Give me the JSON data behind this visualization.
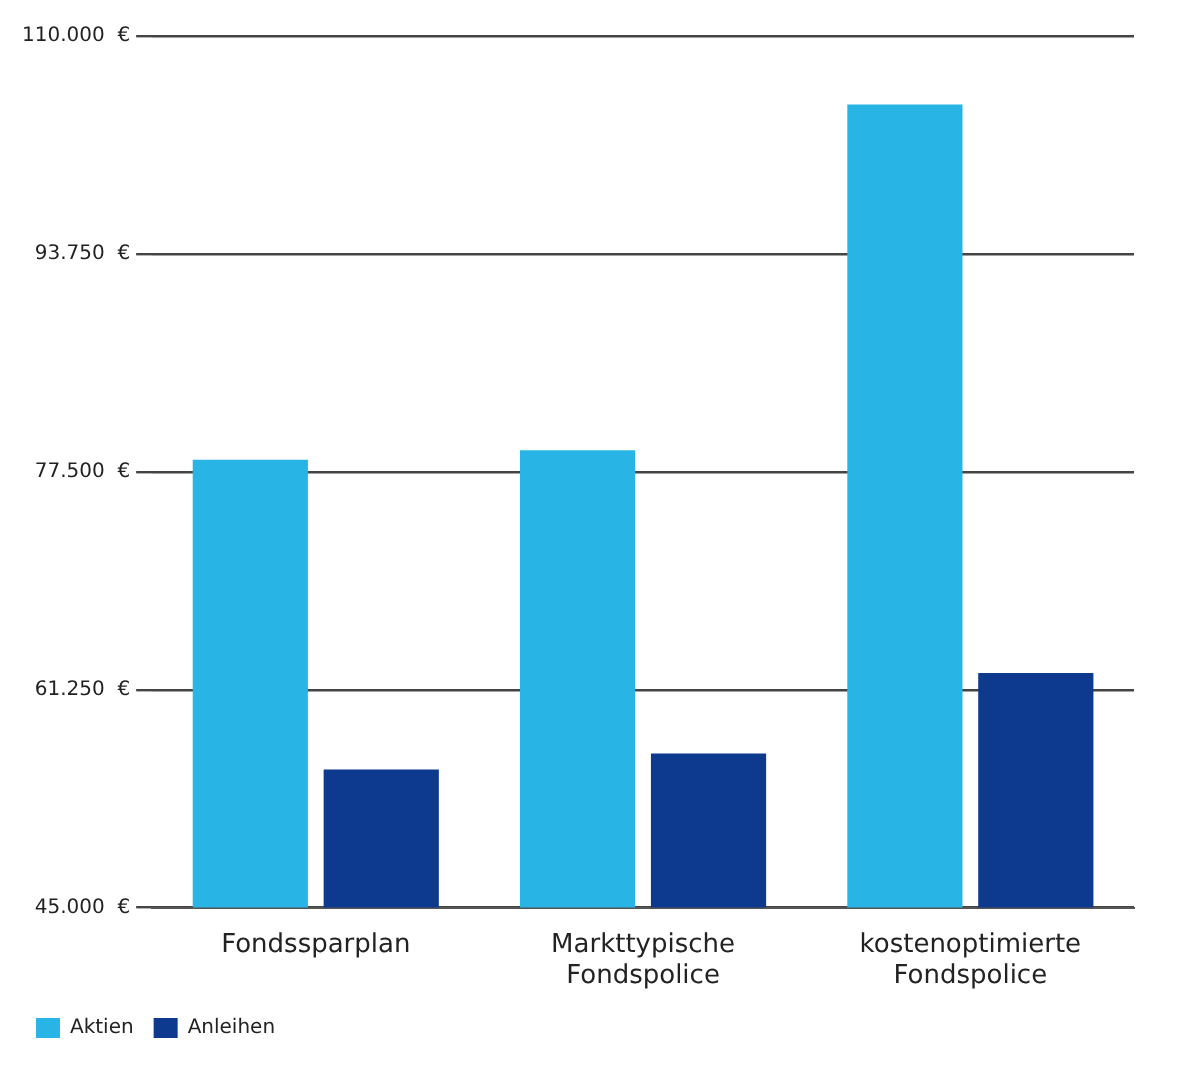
{
  "chart_data": {
    "type": "bar",
    "categories": [
      "Fondssparplan",
      "Markttypische Fondspolice",
      "kostenoptimierte Fondspolice"
    ],
    "series": [
      {
        "name": "Aktien",
        "color": "#29b4e6",
        "values": [
          78400,
          79100,
          104900
        ]
      },
      {
        "name": "Anleihen",
        "color": "#0d3a8e",
        "values": [
          55300,
          56500,
          62500
        ]
      }
    ],
    "ylim": [
      45000,
      110000
    ],
    "yticks": [
      {
        "value": 45000,
        "label": "45.000  €"
      },
      {
        "value": 61250,
        "label": "61.250  €"
      },
      {
        "value": 77500,
        "label": "77.500  €"
      },
      {
        "value": 93750,
        "label": "93.750  €"
      },
      {
        "value": 110000,
        "label": "110.000  €"
      }
    ],
    "grid": "y",
    "legend": "bottom left"
  }
}
